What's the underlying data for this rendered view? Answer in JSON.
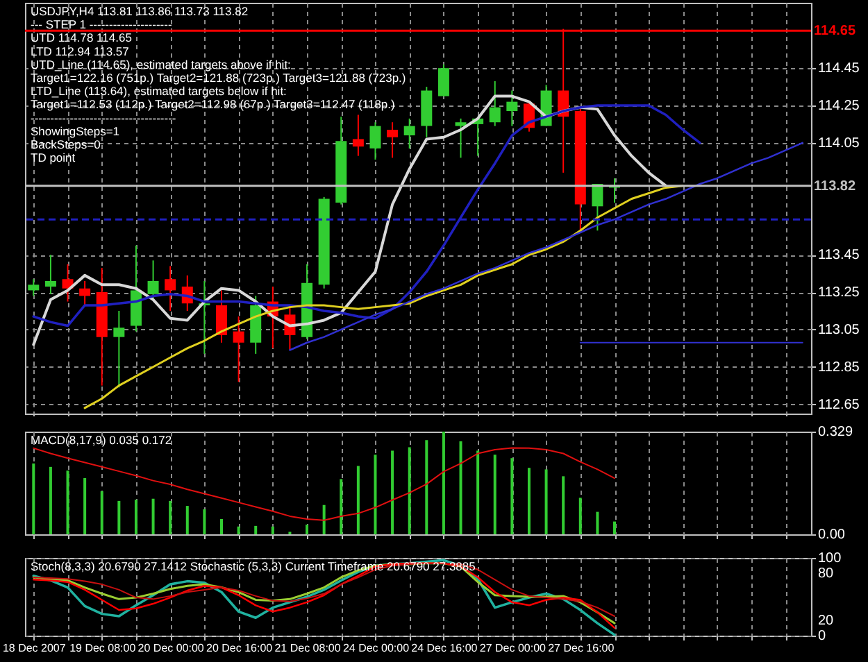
{
  "chart_data": [
    {
      "type": "candlestick",
      "title": "USDJPY,H4 113.81 113.86 113.73 113.82",
      "annotations": [
        "---    STEP 1    ---------------------",
        "UTD 114.78  114.65",
        "LTD  112.94  113.57",
        "UTD_Line (114.65), estimated targets above if hit:",
        "Target1=122.16 (751p.) Target2=121.88 (723p.) Target3=121.88 (723p.)",
        "LTD_Line (113.64), estimated targets below if hit:",
        "Target1=112.53 (112p.) Target2=112.98 (67p.) Target3=112.47 (118p.)",
        "-------------------------------------",
        "ShowingSteps=1",
        "BackSteps=0",
        "TD point"
      ],
      "categories": [
        null,
        null,
        null,
        null,
        null,
        null,
        null,
        null,
        null,
        null,
        null,
        null,
        null,
        null,
        null,
        null,
        null,
        null,
        null,
        null,
        null,
        null,
        null,
        null,
        null,
        null,
        null,
        null,
        null,
        null,
        null,
        null,
        null,
        null,
        null,
        null,
        null,
        null,
        null,
        null,
        null,
        null,
        null,
        null,
        null,
        null
      ],
      "ohlc": [
        [
          113.26,
          113.32,
          113.23,
          113.29
        ],
        [
          113.28,
          113.45,
          113.24,
          113.31
        ],
        [
          113.32,
          113.4,
          113.2,
          113.27
        ],
        [
          113.27,
          113.31,
          113.18,
          113.23
        ],
        [
          113.25,
          113.38,
          112.75,
          113.01
        ],
        [
          113.01,
          113.15,
          112.74,
          113.06
        ],
        [
          113.07,
          113.5,
          113.04,
          113.26
        ],
        [
          113.24,
          113.42,
          113.21,
          113.31
        ],
        [
          113.32,
          113.39,
          113.15,
          113.26
        ],
        [
          113.28,
          113.34,
          113.15,
          113.19
        ],
        [
          113.18,
          113.31,
          112.92,
          113.19
        ],
        [
          113.18,
          113.26,
          112.98,
          113.02
        ],
        [
          113.04,
          113.12,
          112.77,
          112.98
        ],
        [
          112.98,
          113.23,
          112.92,
          113.18
        ],
        [
          113.2,
          113.28,
          112.95,
          113.12
        ],
        [
          113.13,
          113.18,
          112.94,
          113.02
        ],
        [
          113.01,
          113.4,
          113.0,
          113.3
        ],
        [
          113.29,
          113.76,
          113.27,
          113.75
        ],
        [
          113.73,
          114.19,
          113.72,
          114.06
        ],
        [
          114.07,
          114.2,
          113.98,
          114.03
        ],
        [
          114.02,
          114.16,
          113.96,
          114.14
        ],
        [
          114.12,
          114.16,
          113.97,
          114.08
        ],
        [
          114.09,
          114.18,
          114.02,
          114.14
        ],
        [
          114.14,
          114.35,
          114.08,
          114.33
        ],
        [
          114.3,
          114.47,
          114.3,
          114.45
        ],
        [
          114.14,
          114.18,
          113.97,
          114.16
        ],
        [
          114.15,
          114.19,
          113.98,
          114.18
        ],
        [
          114.16,
          114.38,
          114.14,
          114.24
        ],
        [
          114.22,
          114.33,
          114.14,
          114.27
        ],
        [
          114.26,
          114.27,
          114.11,
          114.13
        ],
        [
          114.14,
          114.36,
          114.14,
          114.33
        ],
        [
          114.33,
          114.66,
          113.89,
          114.19
        ],
        [
          114.22,
          114.24,
          113.58,
          113.72
        ],
        [
          113.71,
          113.83,
          113.58,
          113.83
        ],
        [
          113.81,
          113.86,
          113.73,
          113.82
        ],
        null,
        null,
        null,
        null,
        null,
        null,
        null,
        null,
        null,
        null,
        null
      ],
      "colors": [
        "#32cd32",
        "#32cd32",
        "#ff0000",
        "#ff0000",
        "#ff0000",
        "#32cd32",
        "#32cd32",
        "#32cd32",
        "#ff0000",
        "#ff0000",
        "#32cd32",
        "#ff0000",
        "#ff0000",
        "#32cd32",
        "#ff0000",
        "#ff0000",
        "#32cd32",
        "#32cd32",
        "#32cd32",
        "#ff0000",
        "#32cd32",
        "#ff0000",
        "#32cd32",
        "#32cd32",
        "#32cd32",
        "#32cd32",
        "#32cd32",
        "#32cd32",
        "#32cd32",
        "#ff0000",
        "#32cd32",
        "#ff0000",
        "#ff0000",
        "#32cd32",
        "#32cd32",
        null,
        null,
        null,
        null,
        null,
        null,
        null,
        null,
        null,
        null,
        null
      ],
      "series": [
        {
          "type": "line",
          "color": "#d8d8d8",
          "values": [
            112.97,
            113.21,
            113.26,
            113.34,
            113.29,
            113.29,
            113.27,
            113.21,
            113.11,
            113.1,
            113.2,
            113.27,
            113.26,
            113.2,
            113.12,
            113.07,
            113.08,
            113.1,
            113.14,
            113.25,
            113.36,
            113.72,
            113.91,
            114.07,
            114.08,
            114.12,
            114.18,
            114.3,
            114.3,
            114.27,
            114.19,
            114.22,
            114.24,
            114.23,
            114.09,
            113.98,
            113.89,
            113.82,
            null,
            null,
            null,
            null,
            null,
            null,
            null,
            null
          ]
        },
        {
          "type": "line",
          "color": "#2020c0",
          "values": [
            113.12,
            113.09,
            113.07,
            113.18,
            113.18,
            113.19,
            113.2,
            113.23,
            113.24,
            113.23,
            113.2,
            113.2,
            113.2,
            113.19,
            113.18,
            113.18,
            113.17,
            113.15,
            113.14,
            113.12,
            113.11,
            113.16,
            113.25,
            113.36,
            113.5,
            113.65,
            113.8,
            113.94,
            114.09,
            114.16,
            114.19,
            114.22,
            114.24,
            114.25,
            114.25,
            114.25,
            114.25,
            114.2,
            114.12,
            114.05,
            null,
            null,
            null,
            null,
            null,
            null
          ]
        },
        {
          "type": "line",
          "color": "#e0d020",
          "values": [
            null,
            null,
            null,
            112.63,
            112.68,
            112.75,
            112.8,
            112.85,
            112.9,
            112.95,
            112.99,
            113.04,
            113.08,
            113.12,
            113.15,
            113.17,
            113.18,
            113.18,
            113.17,
            113.16,
            113.17,
            113.18,
            113.19,
            113.23,
            113.26,
            113.29,
            113.34,
            113.37,
            113.4,
            113.45,
            113.48,
            113.52,
            113.58,
            113.65,
            113.7,
            113.75,
            113.78,
            113.81,
            113.82,
            null,
            null,
            null,
            null,
            null,
            null,
            null
          ]
        },
        {
          "type": "line",
          "color": "#3030d0",
          "values": [
            null,
            null,
            null,
            null,
            null,
            null,
            null,
            null,
            null,
            null,
            null,
            null,
            null,
            null,
            null,
            112.94,
            112.98,
            113.01,
            113.05,
            113.09,
            113.13,
            113.16,
            113.2,
            113.24,
            113.27,
            113.31,
            113.35,
            113.38,
            113.42,
            113.46,
            113.49,
            113.53,
            113.57,
            113.61,
            113.64,
            113.68,
            113.72,
            113.75,
            113.79,
            113.83,
            113.86,
            113.9,
            113.94,
            113.97,
            114.01,
            114.05
          ]
        },
        {
          "type": "line",
          "color": "#3030d0",
          "values": [
            null,
            null,
            null,
            null,
            null,
            null,
            null,
            null,
            null,
            null,
            null,
            null,
            null,
            null,
            null,
            null,
            null,
            null,
            null,
            null,
            null,
            null,
            null,
            null,
            null,
            null,
            null,
            null,
            null,
            null,
            null,
            null,
            112.98,
            112.98,
            112.98,
            112.98,
            112.98,
            112.98,
            112.98,
            112.98,
            112.98,
            112.98,
            112.98,
            112.98,
            112.98,
            112.98
          ]
        }
      ],
      "ref_lines": [
        {
          "axis": "y",
          "value": 114.65,
          "label": "114.65",
          "color": "#ff0000"
        },
        {
          "axis": "y",
          "value": 113.64,
          "label": null,
          "color": "#2020c0",
          "line_style": "dashed"
        },
        {
          "axis": "y",
          "value": 113.82,
          "label": "113.82",
          "color": "#c0c0c0"
        }
      ],
      "ylim": [
        112.6,
        114.8
      ],
      "yticks": [
        112.65,
        112.85,
        113.05,
        113.25,
        113.45,
        114.05,
        114.25,
        114.45
      ],
      "grid": true
    },
    {
      "type": "bar",
      "title": "MACD(8,17,9) 0.035 0.172",
      "categories": [
        null,
        null,
        null,
        null,
        null,
        null,
        null,
        null,
        null,
        null,
        null,
        null,
        null,
        null,
        null,
        null,
        null,
        null,
        null,
        null,
        null,
        null,
        null,
        null,
        null,
        null,
        null,
        null,
        null,
        null,
        null,
        null,
        null,
        null,
        null,
        null,
        null,
        null,
        null,
        null,
        null,
        null,
        null,
        null,
        null,
        null
      ],
      "series": [
        {
          "type": "bar",
          "color": "#32cd32",
          "values": [
            0.227,
            0.216,
            0.204,
            0.18,
            0.138,
            0.107,
            0.111,
            0.114,
            0.107,
            0.091,
            0.08,
            0.049,
            0.025,
            0.027,
            0.025,
            0.008,
            0.031,
            0.094,
            0.177,
            0.219,
            0.255,
            0.268,
            0.279,
            0.302,
            0.329,
            0.298,
            0.268,
            0.255,
            0.244,
            0.213,
            0.208,
            0.186,
            0.117,
            0.072,
            0.041,
            null,
            null,
            null,
            null,
            null,
            null,
            null,
            null,
            null,
            null,
            null
          ]
        },
        {
          "type": "line",
          "color": "#e01010",
          "values": [
            0.276,
            0.259,
            0.244,
            0.23,
            0.216,
            0.202,
            0.188,
            0.172,
            0.16,
            0.144,
            0.13,
            0.116,
            0.102,
            0.088,
            0.074,
            0.058,
            0.049,
            0.045,
            0.058,
            0.067,
            0.086,
            0.11,
            0.133,
            0.161,
            0.201,
            0.227,
            0.259,
            0.271,
            0.277,
            0.276,
            0.271,
            0.259,
            0.232,
            0.208,
            0.18,
            null,
            null,
            null,
            null,
            null,
            null,
            null,
            null,
            null,
            null,
            null
          ]
        }
      ],
      "ylim": [
        0,
        0.329
      ],
      "yticks": [
        {
          "value": 0,
          "label": "0.00"
        },
        0.329
      ],
      "grid": "x"
    },
    {
      "type": "line",
      "title": "Stoch(8,3,3) 20.6790 27.1412  Stochastic (5,3,3) Current Timeframe 20.6790 27.3885",
      "categories": [
        "18 Dec 2007",
        null,
        null,
        null,
        "19 Dec 08:00",
        null,
        null,
        null,
        "20 Dec 00:00",
        null,
        null,
        null,
        "20 Dec 16:00",
        null,
        null,
        null,
        "21 Dec 08:00",
        null,
        null,
        null,
        "24 Dec 00:00",
        null,
        null,
        null,
        "24 Dec 16:00",
        null,
        null,
        null,
        "27 Dec 00:00",
        null,
        null,
        null,
        "27 Dec 16:00",
        null,
        null,
        null,
        null,
        null,
        null,
        null,
        null,
        null,
        null,
        null,
        null,
        null
      ],
      "series": [
        {
          "color": "#20b2a0",
          "values": [
            77,
            71,
            62,
            38,
            28,
            25,
            39,
            52,
            66,
            70,
            68,
            56,
            31,
            23,
            36,
            43,
            50,
            59,
            71,
            82,
            90,
            92,
            93,
            95,
            97,
            90,
            73,
            36,
            43,
            49,
            54,
            47,
            33,
            16,
            1,
            null,
            null,
            null,
            null,
            null,
            null,
            null,
            null,
            null,
            null,
            null
          ]
        },
        {
          "color": "#9acd32",
          "values": [
            75,
            73,
            71,
            62,
            54,
            47,
            49,
            54,
            60,
            64,
            66,
            62,
            56,
            46,
            45,
            47,
            54,
            62,
            75,
            84,
            90,
            92,
            92,
            93,
            93,
            89,
            69,
            52,
            51,
            50,
            50,
            51,
            43,
            30,
            16,
            null,
            null,
            null,
            null,
            null,
            null,
            null,
            null,
            null,
            null,
            null
          ]
        },
        {
          "color": "#ff0000",
          "values": [
            72,
            71,
            69,
            59,
            46,
            33,
            35,
            41,
            49,
            58,
            64,
            62,
            52,
            39,
            31,
            36,
            43,
            52,
            66,
            77,
            89,
            92,
            93,
            93,
            93,
            89,
            75,
            56,
            43,
            39,
            46,
            49,
            46,
            30,
            10,
            null,
            null,
            null,
            null,
            null,
            null,
            null,
            null,
            null,
            null,
            null
          ]
        },
        {
          "color": "#c81010",
          "values": [
            75,
            74,
            73,
            70,
            66,
            59,
            49,
            47,
            51,
            56,
            59,
            62,
            58,
            51,
            45,
            44,
            48,
            54,
            66,
            75,
            85,
            90,
            92,
            93,
            93,
            92,
            85,
            72,
            59,
            51,
            49,
            47,
            44,
            36,
            25,
            null,
            null,
            null,
            null,
            null,
            null,
            null,
            null,
            null,
            null,
            null
          ]
        }
      ],
      "ylim": [
        0,
        100
      ],
      "yticks": [
        0,
        20,
        80,
        100
      ],
      "grid": true
    }
  ]
}
